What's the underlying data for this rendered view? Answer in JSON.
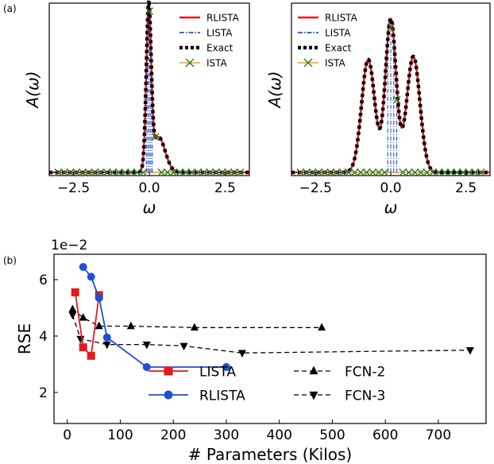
{
  "panel_labels": {
    "a": "(a)",
    "b": "(b)"
  },
  "chart_data": [
    {
      "type": "line",
      "panel": "a-left",
      "title": "",
      "xlabel": "ω",
      "ylabel": "A(ω)",
      "xlim": [
        -3.3,
        3.3
      ],
      "ylim": [
        -0.02,
        1.05
      ],
      "xticks": [
        -2.5,
        0.0,
        2.5
      ],
      "xtick_labels": [
        "−2.5",
        "0.0",
        "2.5"
      ],
      "legend": [
        "RLISTA",
        "LISTA",
        "Exact",
        "ISTA"
      ],
      "legend_position": "top-right",
      "colors": {
        "RLISTA": "#e8181b",
        "LISTA": "#1f4fd6",
        "Exact": "#000000",
        "ISTA_marker": "#2a7a2a",
        "ISTA_line": "#f0a020"
      },
      "curve_components": [
        {
          "center": -0.02,
          "height": 0.98,
          "width": 0.08
        },
        {
          "center": 0.3,
          "height": 0.22,
          "width": 0.22
        }
      ],
      "ista_x": [
        -3.0,
        -2.8,
        -2.6,
        -2.4,
        -2.2,
        -2.0,
        -1.8,
        -1.6,
        -1.4,
        -1.2,
        -1.0,
        -0.8,
        -0.6,
        -0.4,
        -0.2,
        0.0,
        0.2,
        0.4,
        0.6,
        0.8,
        1.0,
        1.2,
        1.4,
        1.6,
        1.8,
        2.0,
        2.2,
        2.4,
        2.6,
        2.8,
        3.0
      ],
      "ista_y": [
        0,
        0,
        0,
        0,
        0,
        0,
        0,
        0,
        0,
        0,
        0,
        0,
        0,
        0,
        0,
        1.0,
        0.22,
        0,
        0,
        0,
        0,
        0,
        0,
        0,
        0,
        0,
        0,
        0,
        0,
        0,
        0
      ],
      "lista_spikes": [
        -0.1,
        -0.05,
        0.0,
        0.05,
        0.1
      ]
    },
    {
      "type": "line",
      "panel": "a-right",
      "title": "",
      "xlabel": "ω",
      "ylabel": "A(ω)",
      "xlim": [
        -3.3,
        3.3
      ],
      "ylim": [
        -0.02,
        1.05
      ],
      "xticks": [
        -2.5,
        0.0,
        2.5
      ],
      "xtick_labels": [
        "−2.5",
        "0.0",
        "2.5"
      ],
      "legend": [
        "RLISTA",
        "LISTA",
        "Exact",
        "ISTA"
      ],
      "legend_position": "top-left",
      "colors": {
        "RLISTA": "#e8181b",
        "LISTA": "#1f4fd6",
        "Exact": "#000000",
        "ISTA_marker": "#2a7a2a",
        "ISTA_line": "#f0a020"
      },
      "curve_components": [
        {
          "center": -0.75,
          "height": 0.7,
          "width": 0.22
        },
        {
          "center": 0.0,
          "height": 0.95,
          "width": 0.18
        },
        {
          "center": 0.75,
          "height": 0.72,
          "width": 0.22
        }
      ],
      "ista_x": [
        -3.0,
        -2.8,
        -2.6,
        -2.4,
        -2.2,
        -2.0,
        -1.8,
        -1.6,
        -1.4,
        -1.2,
        -1.0,
        -0.8,
        -0.6,
        -0.4,
        -0.2,
        0.0,
        0.2,
        0.4,
        0.6,
        0.8,
        1.0,
        1.2,
        1.4,
        1.6,
        1.8,
        2.0,
        2.2,
        2.4,
        2.6,
        2.8,
        3.0
      ],
      "ista_y": [
        0,
        0,
        0,
        0,
        0,
        0,
        0,
        0,
        0,
        0,
        0,
        0,
        0,
        0,
        0,
        0.9,
        0.45,
        0,
        0,
        0,
        0,
        0,
        0,
        0,
        0,
        0,
        0,
        0,
        0,
        0,
        0
      ],
      "lista_spikes": [
        -0.1,
        0.0,
        0.1,
        0.2
      ]
    },
    {
      "type": "line",
      "panel": "b",
      "title": "",
      "xlabel": "# Parameters (Kilos)",
      "ylabel": "RSE",
      "offset_text": "1e−2",
      "xlim": [
        -25,
        790
      ],
      "ylim": [
        0.9,
        6.9
      ],
      "xticks": [
        0,
        100,
        200,
        300,
        400,
        500,
        600,
        700
      ],
      "yticks": [
        2,
        4,
        6
      ],
      "legend_position": "bottom-center",
      "series": [
        {
          "name": "LISTA",
          "color": "#e8181b",
          "marker": "square",
          "dash": "solid",
          "x": [
            15,
            30,
            45,
            60
          ],
          "y": [
            5.55,
            3.6,
            3.3,
            5.45
          ]
        },
        {
          "name": "RLISTA",
          "color": "#1f4fd6",
          "marker": "circle",
          "dash": "solid",
          "x": [
            30,
            45,
            60,
            75,
            150,
            300
          ],
          "y": [
            6.45,
            6.1,
            5.35,
            3.95,
            2.9,
            2.9
          ]
        },
        {
          "name": "FCN-2",
          "color": "#000000",
          "marker": "triangle-up",
          "dash": "dashed",
          "x": [
            10,
            30,
            60,
            120,
            240,
            480
          ],
          "y": [
            4.95,
            4.65,
            4.35,
            4.35,
            4.3,
            4.3
          ]
        },
        {
          "name": "FCN-3",
          "color": "#000000",
          "marker": "triangle-down",
          "dash": "dashed",
          "x": [
            10,
            25,
            75,
            150,
            220,
            330,
            760
          ],
          "y": [
            4.75,
            3.9,
            3.7,
            3.7,
            3.65,
            3.4,
            3.5
          ]
        }
      ]
    }
  ]
}
